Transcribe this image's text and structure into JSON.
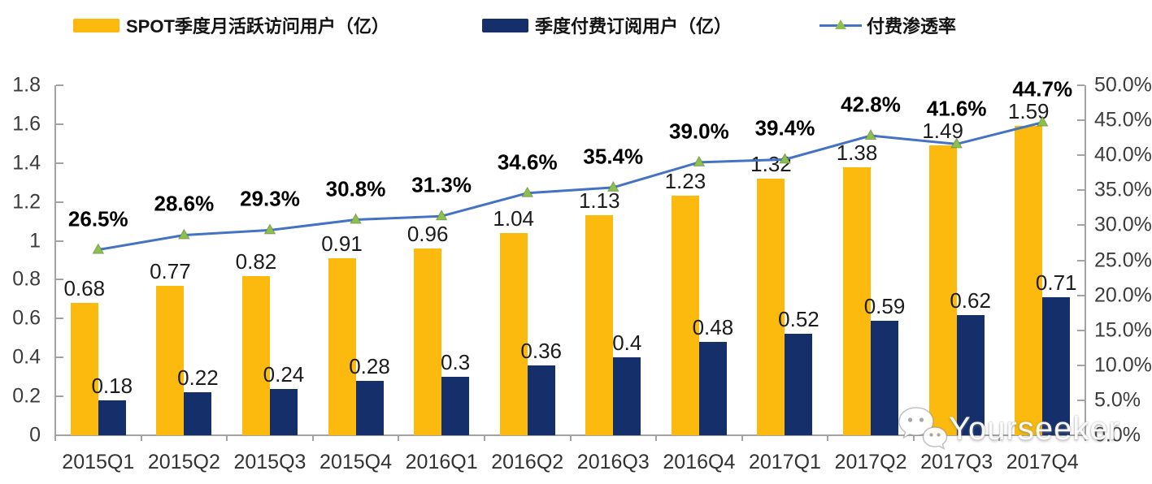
{
  "legend": [
    {
      "label": "SPOT季度月活跃访问用户（亿）",
      "type": "bar",
      "color": "#FBBA0D"
    },
    {
      "label": "季度付费订阅用户（亿）",
      "type": "bar",
      "color": "#152F6B"
    },
    {
      "label": "付费渗透率",
      "type": "line",
      "color": "#4472C4",
      "marker_color": "#8DBE50"
    }
  ],
  "watermark": {
    "icon": "wechat-icon",
    "text": "Yourseeker"
  },
  "chart_data": {
    "type": "bar",
    "subtype": "grouped bars + line on secondary axis",
    "categories": [
      "2015Q1",
      "2015Q2",
      "2015Q3",
      "2015Q4",
      "2016Q1",
      "2016Q2",
      "2016Q3",
      "2016Q4",
      "2017Q1",
      "2017Q2",
      "2017Q3",
      "2017Q4"
    ],
    "series": [
      {
        "name": "SPOT季度月活跃访问用户（亿）",
        "type": "bar",
        "axis": "left",
        "color": "#FBBA0D",
        "values": [
          0.68,
          0.77,
          0.82,
          0.91,
          0.96,
          1.04,
          1.13,
          1.23,
          1.32,
          1.38,
          1.49,
          1.59
        ],
        "labels": [
          "0.68",
          "0.77",
          "0.82",
          "0.91",
          "0.96",
          "1.04",
          "1.13",
          "1.23",
          "1.32",
          "1.38",
          "1.49",
          "1.59"
        ]
      },
      {
        "name": "季度付费订阅用户（亿）",
        "type": "bar",
        "axis": "left",
        "color": "#152F6B",
        "values": [
          0.18,
          0.22,
          0.24,
          0.28,
          0.3,
          0.36,
          0.4,
          0.48,
          0.52,
          0.59,
          0.62,
          0.71
        ],
        "labels": [
          "0.18",
          "0.22",
          "0.24",
          "0.28",
          "0.3",
          "0.36",
          "0.4",
          "0.48",
          "0.52",
          "0.59",
          "0.62",
          "0.71"
        ]
      },
      {
        "name": "付费渗透率",
        "type": "line",
        "axis": "right",
        "color": "#4472C4",
        "marker": "triangle",
        "marker_color": "#8DBE50",
        "values": [
          26.5,
          28.6,
          29.3,
          30.8,
          31.3,
          34.6,
          35.4,
          39.0,
          39.4,
          42.8,
          41.6,
          44.7
        ],
        "labels": [
          "26.5%",
          "28.6%",
          "29.3%",
          "30.8%",
          "31.3%",
          "34.6%",
          "35.4%",
          "39.0%",
          "39.4%",
          "42.8%",
          "41.6%",
          "44.7%"
        ]
      }
    ],
    "title": "",
    "xlabel": "",
    "ylabel": "",
    "grid": false,
    "legend_position": "top",
    "left_axis": {
      "min": 0,
      "max": 1.8,
      "step": 0.2,
      "ticks": [
        "0",
        "0.2",
        "0.4",
        "0.6",
        "0.8",
        "1",
        "1.2",
        "1.4",
        "1.6",
        "1.8"
      ]
    },
    "right_axis": {
      "min": 0,
      "max": 50,
      "step": 5,
      "ticks": [
        "0.0%",
        "5.0%",
        "10.0%",
        "15.0%",
        "20.0%",
        "25.0%",
        "30.0%",
        "35.0%",
        "40.0%",
        "45.0%",
        "50.0%"
      ]
    }
  }
}
